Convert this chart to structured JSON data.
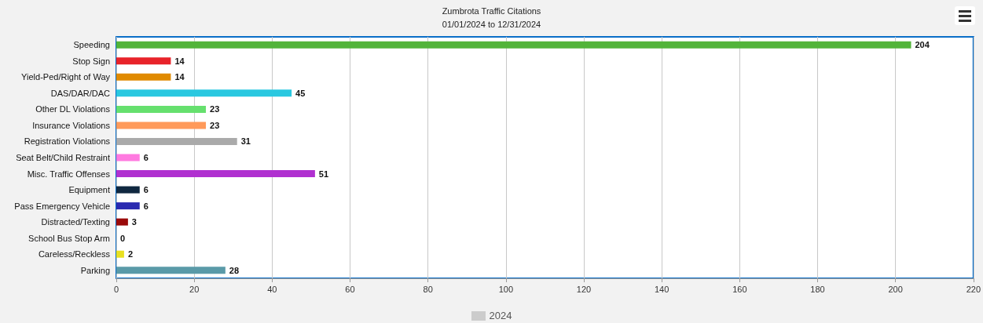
{
  "chart_data": {
    "type": "bar",
    "orientation": "horizontal",
    "title": "Zumbrota Traffic Citations",
    "subtitle": "01/01/2024 to 12/31/2024",
    "categories": [
      "Speeding",
      "Stop Sign",
      "Yield-Ped/Right of Way",
      "DAS/DAR/DAC",
      "Other DL Violations",
      "Insurance Violations",
      "Registration Violations",
      "Seat Belt/Child Restraint",
      "Misc. Traffic Offenses",
      "Equipment",
      "Pass Emergency Vehicle",
      "Distracted/Texting",
      "School Bus Stop Arm",
      "Careless/Reckless",
      "Parking"
    ],
    "series": [
      {
        "name": "2024",
        "values": [
          204,
          14,
          14,
          45,
          23,
          23,
          31,
          6,
          51,
          6,
          6,
          3,
          0,
          2,
          28
        ]
      }
    ],
    "colors": [
      "#52b43a",
      "#e8232a",
      "#e08a00",
      "#2ac8e0",
      "#66e06e",
      "#ff9a5a",
      "#aaaaaa",
      "#ff7ae0",
      "#b030d0",
      "#102840",
      "#2a2ab0",
      "#9a0a0a",
      "#888888",
      "#e8e020",
      "#5a9aa8"
    ],
    "xlim": [
      0,
      220
    ],
    "xticks": [
      0,
      20,
      40,
      60,
      80,
      100,
      120,
      140,
      160,
      180,
      200,
      220
    ],
    "grid": "x",
    "data_labels": true,
    "legend": "bottom"
  }
}
